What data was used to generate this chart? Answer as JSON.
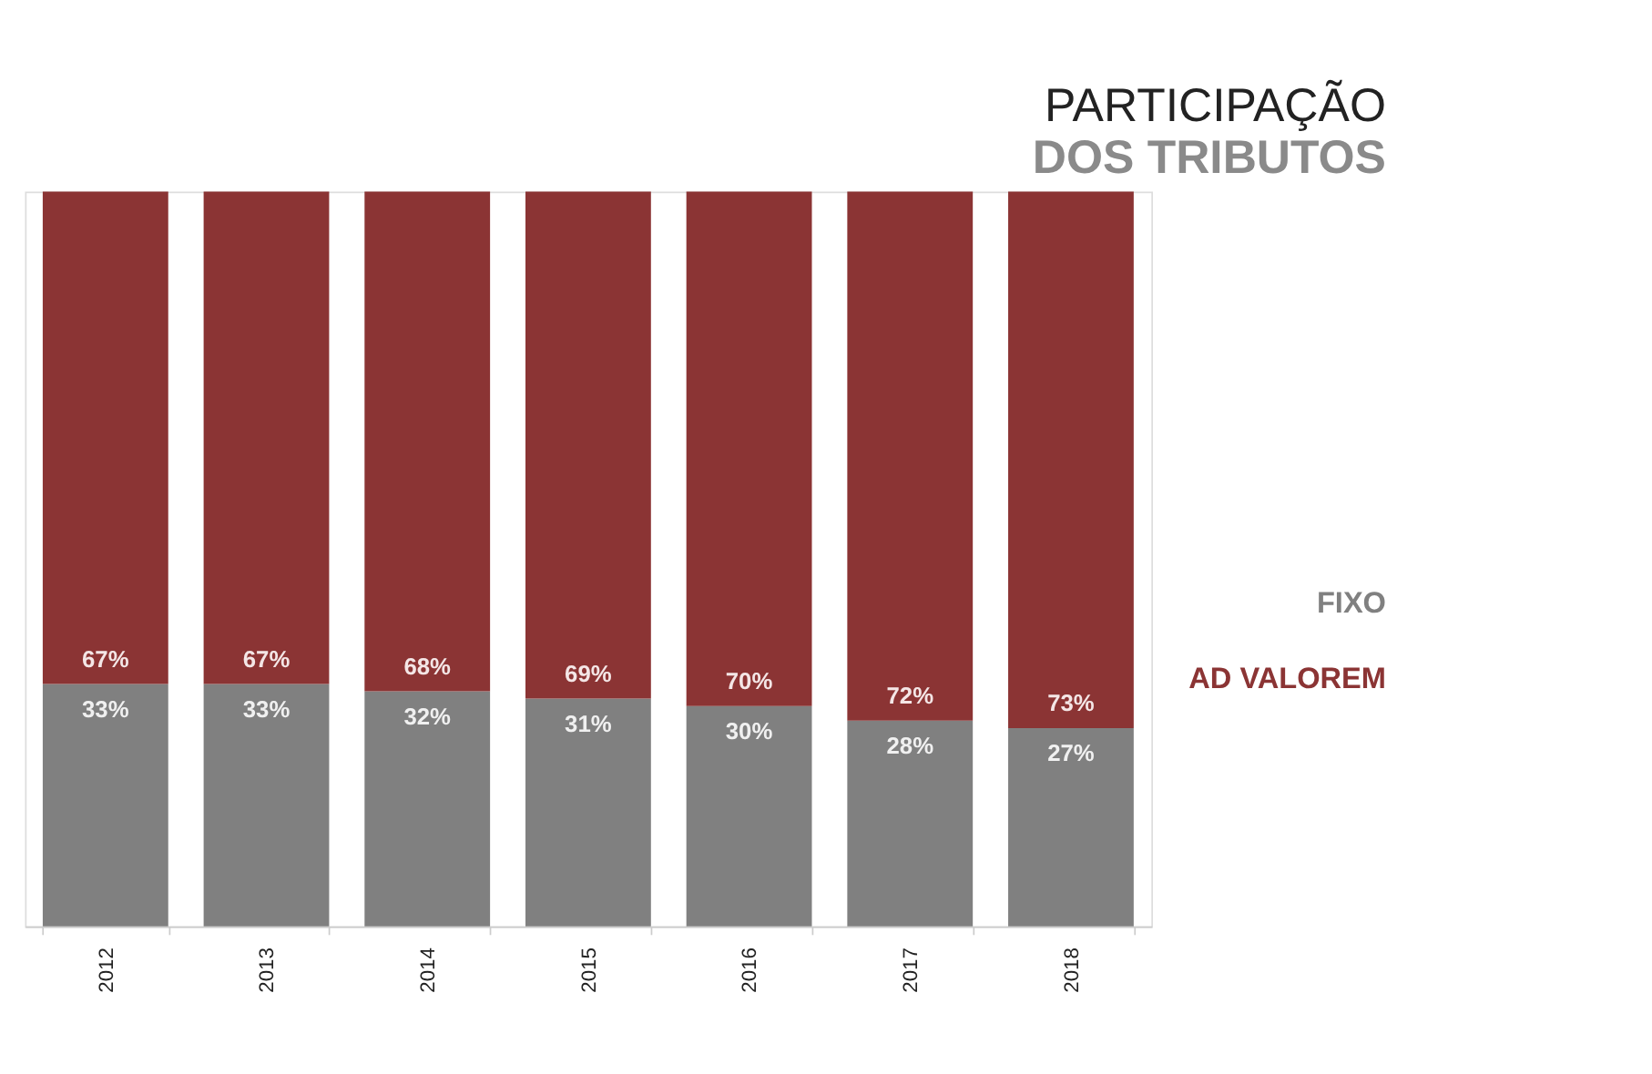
{
  "chart_data": {
    "type": "bar",
    "title": "PARTICIPAÇÃO DOS TRIBUTOS",
    "stacked": true,
    "categories": [
      "2012",
      "2013",
      "2014",
      "2015",
      "2016",
      "2017",
      "2018"
    ],
    "series": [
      {
        "name": "FIXO",
        "color": "#808080",
        "values": [
          33,
          33,
          32,
          31,
          30,
          28,
          27
        ],
        "value_labels": [
          "33%",
          "33%",
          "32%",
          "31%",
          "30%",
          "28%",
          "27%"
        ]
      },
      {
        "name": "AD VALOREM",
        "color": "#8b3434",
        "values": [
          67,
          67,
          68,
          69,
          70,
          72,
          73
        ],
        "value_labels": [
          "67%",
          "67%",
          "68%",
          "69%",
          "70%",
          "72%",
          "73%"
        ]
      }
    ],
    "ylim": [
      0,
      100
    ],
    "legend": "right",
    "tick_labels": "x"
  }
}
